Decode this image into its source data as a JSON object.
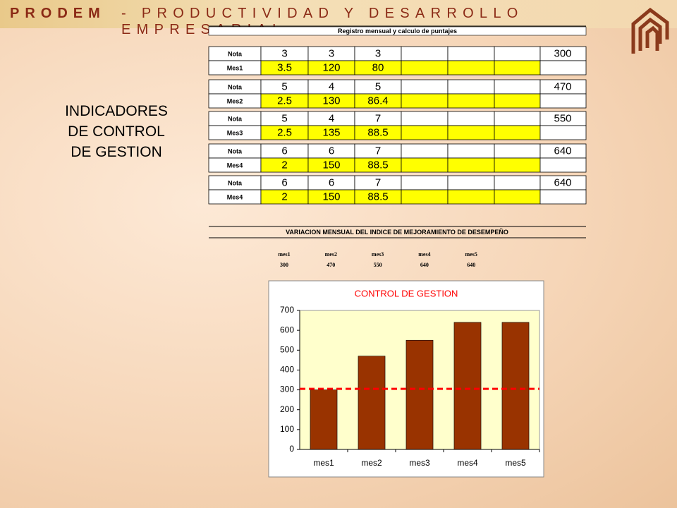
{
  "header": {
    "brand": "PRODEM",
    "subtitle": "- PRODUCTIVIDAD Y DESARROLLO EMPRESARIAL"
  },
  "side_title": [
    "INDICADORES",
    "DE CONTROL",
    "DE GESTION"
  ],
  "registro": {
    "title": "Registro mensual y calculo de puntajes",
    "blocks": [
      {
        "rows": [
          {
            "label": "Nota",
            "cells": [
              3,
              3,
              3
            ],
            "total": 300
          },
          {
            "label": "Mes1",
            "cells": [
              3.5,
              120,
              80
            ]
          }
        ]
      },
      {
        "rows": [
          {
            "label": "Nota",
            "cells": [
              5,
              4,
              5
            ],
            "total": 470
          },
          {
            "label": "Mes2",
            "cells": [
              2.5,
              130,
              86.4
            ]
          }
        ]
      },
      {
        "rows": [
          {
            "label": "Nota",
            "cells": [
              5,
              4,
              7
            ],
            "total": 550
          },
          {
            "label": "Mes3",
            "cells": [
              2.5,
              135,
              88.5
            ]
          }
        ]
      },
      {
        "rows": [
          {
            "label": "Nota",
            "cells": [
              6,
              6,
              7
            ],
            "total": 640
          },
          {
            "label": "Mes4",
            "cells": [
              2,
              150,
              88.5
            ]
          }
        ]
      },
      {
        "rows": [
          {
            "label": "Nota",
            "cells": [
              6,
              6,
              7
            ],
            "total": 640
          },
          {
            "label": "Mes4",
            "cells": [
              2,
              150,
              88.5
            ]
          }
        ]
      }
    ]
  },
  "variacion": {
    "title": "VARIACION MENSUAL DEL INDICE DE MEJORAMIENTO DE DESEMPEÑO",
    "months": [
      "mes1",
      "mes2",
      "mes3",
      "mes4",
      "mes5"
    ],
    "values": [
      300,
      470,
      550,
      640,
      640
    ]
  },
  "chart_data": {
    "type": "bar",
    "title": "CONTROL DE GESTION",
    "categories": [
      "mes1",
      "mes2",
      "mes3",
      "mes4",
      "mes5"
    ],
    "values": [
      300,
      470,
      550,
      640,
      640
    ],
    "color": "#993300",
    "plot_background": "#ffffcc",
    "ylim": [
      0,
      700
    ],
    "yticks": [
      0,
      100,
      200,
      300,
      400,
      500,
      600,
      700
    ],
    "reference_line": {
      "value": 305,
      "color": "#ff0000"
    }
  }
}
